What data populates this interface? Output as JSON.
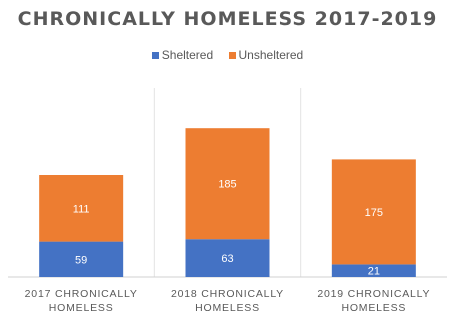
{
  "chart_data": {
    "type": "bar",
    "stacked": true,
    "title": "CHRONICALLY HOMELESS 2017-2019",
    "categories": [
      "2017 CHRONICALLY HOMELESS",
      "2018 CHRONICALLY HOMELESS",
      "2019 CHRONICALLY HOMELESS"
    ],
    "category_lines": [
      [
        "2017 CHRONICALLY",
        "HOMELESS"
      ],
      [
        "2018 CHRONICALLY",
        "HOMELESS"
      ],
      [
        "2019 CHRONICALLY",
        "HOMELESS"
      ]
    ],
    "series": [
      {
        "name": "Sheltered",
        "values": [
          59,
          63,
          21
        ],
        "color": "#4472c4"
      },
      {
        "name": "Unsheltered",
        "values": [
          111,
          185,
          175
        ],
        "color": "#ed7d31"
      }
    ],
    "legend_position": "top",
    "grid": false,
    "data_labels": true
  }
}
